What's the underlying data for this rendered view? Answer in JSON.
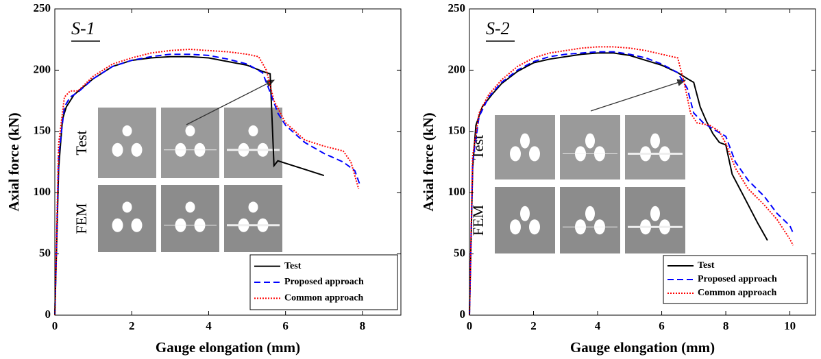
{
  "chart_data": [
    {
      "type": "line",
      "annotation": "S-1",
      "xlabel": "Gauge elongation (mm)",
      "ylabel": "Axial force (kN)",
      "inset_labels": [
        "Test",
        "FEM"
      ],
      "xlim": [
        0,
        9
      ],
      "xticks": [
        0,
        2,
        4,
        6,
        8
      ],
      "ylim": [
        0,
        250
      ],
      "yticks": [
        0,
        50,
        100,
        150,
        200,
        250
      ],
      "legend": "lower right",
      "series": [
        {
          "name": "Test",
          "color": "#000000",
          "style": "solid",
          "x": [
            0,
            0.1,
            0.2,
            0.3,
            0.5,
            1,
            1.5,
            2,
            2.5,
            3,
            3.5,
            4,
            4.5,
            5,
            5.4,
            5.6,
            5.65,
            5.7,
            5.8,
            6,
            6.5,
            7
          ],
          "values": [
            0,
            120,
            160,
            170,
            180,
            193,
            203,
            208,
            210,
            211,
            211,
            210,
            207,
            204,
            199,
            197,
            160,
            122,
            126,
            124,
            119,
            114
          ]
        },
        {
          "name": "Proposed approach",
          "color": "#0000ff",
          "style": "dashed",
          "x": [
            0,
            0.1,
            0.25,
            0.4,
            0.6,
            1,
            1.5,
            2,
            2.5,
            3,
            3.5,
            4,
            4.5,
            5,
            5.4,
            5.6,
            5.8,
            6,
            6.5,
            7,
            7.5,
            7.8,
            7.95
          ],
          "values": [
            0,
            130,
            170,
            178,
            182,
            193,
            203,
            208,
            211,
            213,
            213,
            212,
            209,
            205,
            198,
            182,
            165,
            155,
            141,
            132,
            125,
            118,
            105
          ]
        },
        {
          "name": "Common approach",
          "color": "#ff0000",
          "style": "dotted",
          "x": [
            0,
            0.1,
            0.25,
            0.4,
            0.6,
            1,
            1.5,
            2,
            2.5,
            3,
            3.5,
            4,
            4.5,
            5,
            5.3,
            5.5,
            5.7,
            6,
            6.5,
            7,
            7.5,
            7.7,
            7.9
          ],
          "values": [
            0,
            140,
            178,
            183,
            183,
            195,
            205,
            210,
            214,
            216,
            217,
            216,
            215,
            213,
            211,
            200,
            175,
            157,
            143,
            138,
            134,
            125,
            103
          ]
        }
      ]
    },
    {
      "type": "line",
      "annotation": "S-2",
      "xlabel": "Gauge elongation (mm)",
      "ylabel": "Axial force (kN)",
      "inset_labels": [
        "Test",
        "FEM"
      ],
      "xlim": [
        0,
        10.8
      ],
      "xticks": [
        0,
        2,
        4,
        6,
        8,
        10
      ],
      "ylim": [
        0,
        250
      ],
      "yticks": [
        0,
        50,
        100,
        150,
        200,
        250
      ],
      "legend": "lower right",
      "series": [
        {
          "name": "Test",
          "color": "#000000",
          "style": "solid",
          "x": [
            0,
            0.1,
            0.2,
            0.4,
            0.7,
            1,
            1.5,
            2,
            2.5,
            3,
            3.5,
            4,
            4.5,
            5,
            5.5,
            6,
            6.5,
            6.8,
            7,
            7.2,
            7.4,
            7.6,
            7.8,
            8,
            8.2,
            8.5,
            9,
            9.3
          ],
          "values": [
            0,
            120,
            155,
            170,
            180,
            189,
            199,
            206,
            209,
            211,
            213,
            214,
            214,
            212,
            208,
            204,
            198,
            193,
            190,
            170,
            158,
            148,
            141,
            139,
            115,
            100,
            75,
            61
          ]
        },
        {
          "name": "Proposed approach",
          "color": "#0000ff",
          "style": "dashed",
          "x": [
            0,
            0.1,
            0.3,
            0.6,
            1,
            1.5,
            2,
            2.5,
            3,
            3.5,
            4,
            4.5,
            5,
            5.5,
            6,
            6.5,
            6.8,
            7,
            7.3,
            7.6,
            8,
            8.3,
            8.7,
            9.2,
            9.6,
            10,
            10.1
          ],
          "values": [
            0,
            125,
            162,
            178,
            190,
            200,
            207,
            211,
            213,
            214,
            215,
            215,
            213,
            210,
            205,
            198,
            185,
            165,
            157,
            152,
            146,
            125,
            110,
            97,
            83,
            73,
            67
          ]
        },
        {
          "name": "Common approach",
          "color": "#ff0000",
          "style": "dotted",
          "x": [
            0,
            0.1,
            0.3,
            0.6,
            1,
            1.5,
            2,
            2.5,
            3,
            3.5,
            4,
            4.5,
            5,
            5.5,
            6,
            6.5,
            6.7,
            6.9,
            7.1,
            7.5,
            7.8,
            8,
            8.3,
            8.7,
            9.2,
            9.6,
            10,
            10.1
          ],
          "values": [
            0,
            130,
            165,
            180,
            192,
            203,
            210,
            214,
            216,
            218,
            219,
            219,
            218,
            216,
            213,
            210,
            190,
            165,
            157,
            155,
            150,
            140,
            120,
            103,
            90,
            78,
            62,
            57
          ]
        }
      ]
    }
  ]
}
